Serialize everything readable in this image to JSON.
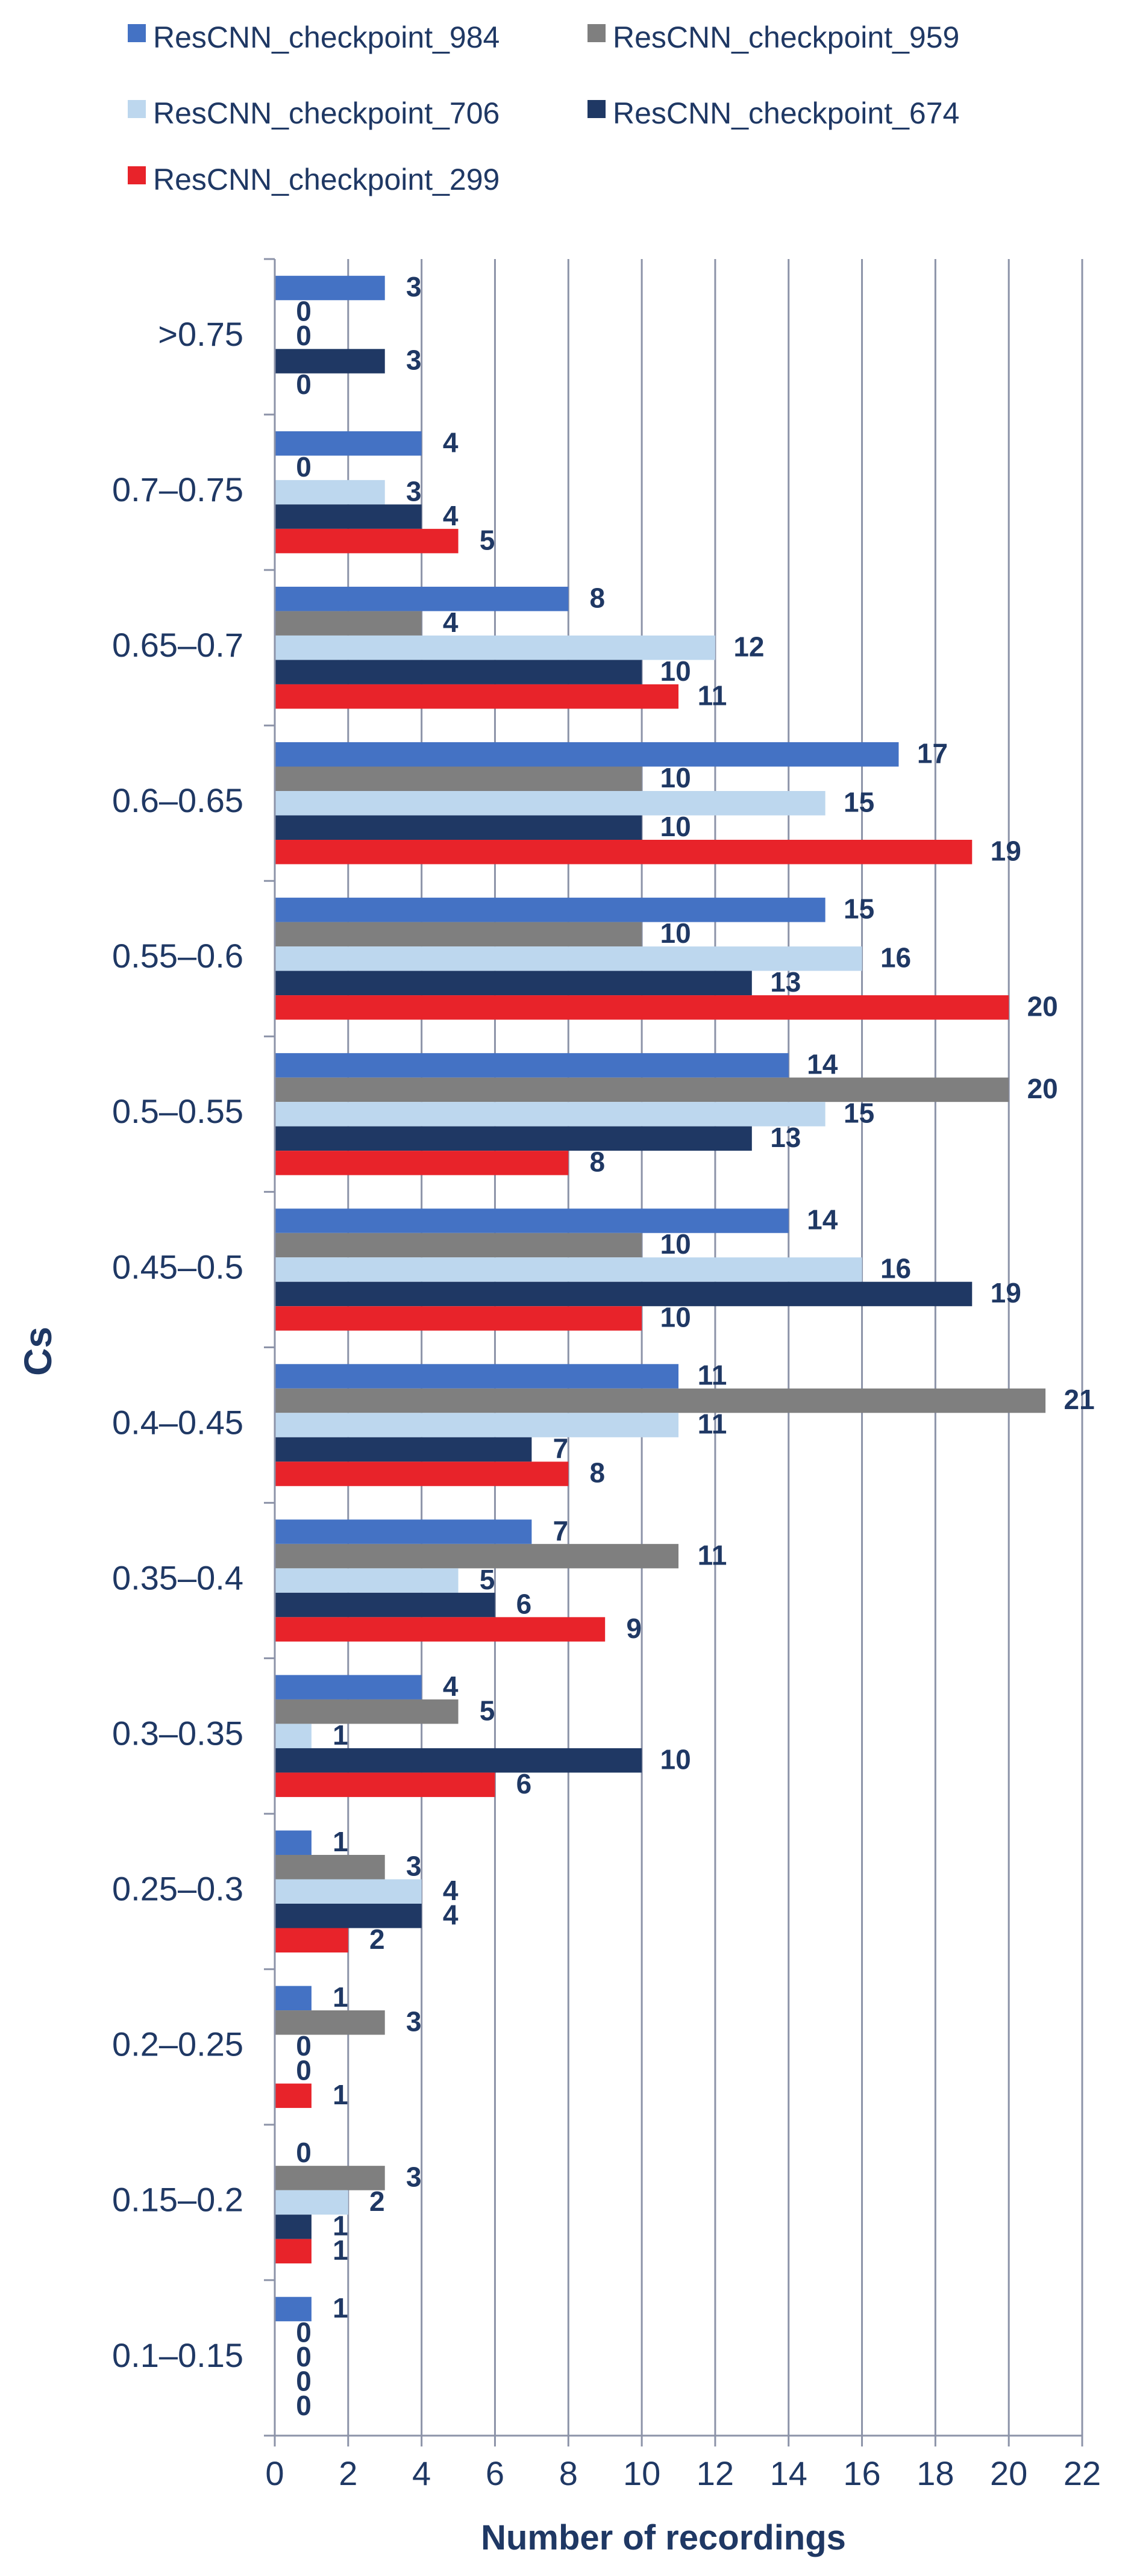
{
  "chart_data": {
    "type": "bar",
    "orientation": "horizontal",
    "title": "",
    "xlabel": "Number of recordings",
    "ylabel": "Cs",
    "xlim": [
      0,
      22
    ],
    "x_ticks": [
      "0",
      "2",
      "4",
      "6",
      "8",
      "10",
      "12",
      "14",
      "16",
      "18",
      "20",
      "22"
    ],
    "grid": "vertical",
    "legend_position": "top",
    "categories": [
      ">0.75",
      "0.7–0.75",
      "0.65–0.7",
      "0.6–0.65",
      "0.55–0.6",
      "0.5–0.55",
      "0.45–0.5",
      "0.4–0.45",
      "0.35–0.4",
      "0.3–0.35",
      "0.25–0.3",
      "0.2–0.25",
      "0.15–0.2",
      "0.1–0.15"
    ],
    "series": [
      {
        "name": "ResCNN_checkpoint_984",
        "color": "#4472C4",
        "values": [
          3,
          4,
          8,
          17,
          15,
          14,
          14,
          11,
          7,
          4,
          1,
          1,
          0,
          1
        ]
      },
      {
        "name": "ResCNN_checkpoint_959",
        "color": "#7F7F7F",
        "values": [
          0,
          0,
          4,
          10,
          10,
          20,
          10,
          21,
          11,
          5,
          3,
          3,
          3,
          0
        ]
      },
      {
        "name": "ResCNN_checkpoint_706",
        "color": "#BDD7EE",
        "values": [
          0,
          3,
          12,
          15,
          16,
          15,
          16,
          11,
          5,
          1,
          4,
          0,
          2,
          0
        ]
      },
      {
        "name": "ResCNN_checkpoint_674",
        "color": "#1F3864",
        "values": [
          3,
          4,
          10,
          10,
          13,
          13,
          19,
          7,
          6,
          10,
          4,
          0,
          1,
          0
        ]
      },
      {
        "name": "ResCNN_checkpoint_299",
        "color": "#E8232A",
        "values": [
          0,
          5,
          11,
          19,
          20,
          8,
          10,
          8,
          9,
          6,
          2,
          1,
          1,
          0
        ]
      }
    ]
  },
  "colors": {
    "axis_text": "#1F3864",
    "grid": "#8C93A8",
    "label": "#1F3864"
  }
}
